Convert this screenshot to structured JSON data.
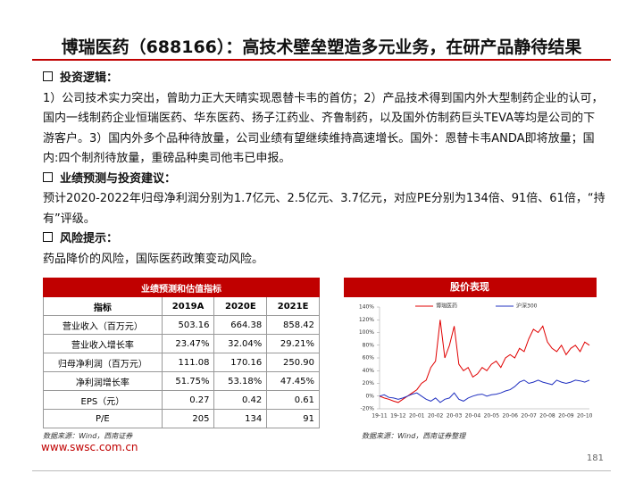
{
  "header": {
    "title": "博瑞医药（688166）：高技术壁垒塑造多元业务，在研产品静待结果"
  },
  "sections": [
    {
      "heading": "投资逻辑：",
      "text": "1）公司技术实力突出，曾助力正大天晴实现恩替卡韦的首仿；2）产品技术得到国内外大型制药企业的认可，国内一线制药企业恒瑞医药、华东医药、扬子江药业、齐鲁制药，以及国外仿制药巨头TEVA等均是公司的下游客户。3）国内外多个品种待放量，公司业绩有望继续维持高速增长。国外：恩替卡韦ANDA即将放量；国内:四个制剂待放量，重磅品种奥司他韦已申报。"
    },
    {
      "heading": "业绩预测与投资建议：",
      "text": "预计2020-2022年归母净利润分别为1.7亿元、2.5亿元、3.7亿元，对应PE分别为134倍、91倍、61倍，“持有”评级。"
    },
    {
      "heading": "风险提示：",
      "text": "药品降价的风险，国际医药政策变动风险。"
    }
  ],
  "table": {
    "title": "业绩预测和估值指标",
    "columns": [
      "指标",
      "2019A",
      "2020E",
      "2021E"
    ],
    "rows": [
      [
        "营业收入（百万元）",
        "503.16",
        "664.38",
        "858.42"
      ],
      [
        "营业收入增长率",
        "23.47%",
        "32.04%",
        "29.21%"
      ],
      [
        "归母净利润（百万元）",
        "111.08",
        "170.16",
        "250.90"
      ],
      [
        "净利润增长率",
        "51.75%",
        "53.18%",
        "47.45%"
      ],
      [
        "EPS（元）",
        "0.27",
        "0.42",
        "0.61"
      ],
      [
        "P/E",
        "205",
        "134",
        "91"
      ]
    ],
    "source": "数据来源：Wind，西南证券"
  },
  "chart_data": {
    "type": "line",
    "title": "股价表现",
    "categories": [
      "19-11",
      null,
      null,
      null,
      "19-12",
      null,
      null,
      null,
      "20-01",
      null,
      null,
      null,
      "20-02",
      null,
      null,
      null,
      "20-03",
      null,
      null,
      null,
      "20-04",
      null,
      null,
      null,
      "20-05",
      null,
      null,
      null,
      "20-06",
      null,
      null,
      null,
      "20-07",
      null,
      null,
      null,
      "20-08",
      null,
      null,
      null,
      "20-09",
      null,
      null,
      null,
      "20-10",
      null
    ],
    "series": [
      {
        "name": "博瑞医药",
        "color": "#e00000",
        "values": [
          0,
          -3,
          -5,
          -8,
          -10,
          -5,
          0,
          5,
          10,
          20,
          25,
          45,
          55,
          120,
          60,
          80,
          110,
          50,
          40,
          45,
          30,
          35,
          45,
          40,
          50,
          55,
          45,
          60,
          65,
          60,
          75,
          70,
          90,
          105,
          100,
          110,
          85,
          75,
          70,
          80,
          65,
          75,
          80,
          70,
          85,
          80
        ]
      },
      {
        "name": "沪深300",
        "color": "#2030c0",
        "values": [
          0,
          2,
          -2,
          -3,
          -5,
          -3,
          0,
          3,
          5,
          0,
          -5,
          -8,
          -3,
          -10,
          -5,
          -3,
          5,
          -5,
          -8,
          -3,
          0,
          2,
          3,
          0,
          2,
          3,
          5,
          8,
          10,
          15,
          22,
          25,
          20,
          22,
          25,
          22,
          20,
          18,
          25,
          22,
          20,
          22,
          25,
          24,
          22,
          25
        ]
      }
    ],
    "ylim": [
      -20,
      140
    ],
    "yticks": [
      {
        "value": 140,
        "label": "140%"
      },
      {
        "value": 120,
        "label": "120%"
      },
      {
        "value": 100,
        "label": "100%"
      },
      {
        "value": 80,
        "label": "80%"
      },
      {
        "value": 60,
        "label": "60%"
      },
      {
        "value": 40,
        "label": "40%"
      },
      {
        "value": 20,
        "label": "20%"
      },
      {
        "value": 0,
        "label": "0%"
      },
      {
        "value": -20,
        "label": "-20%"
      }
    ],
    "source": "数据来源：Wind，西南证券整理"
  },
  "footer": {
    "website": "www.swsc.com.cn",
    "page": "181"
  }
}
